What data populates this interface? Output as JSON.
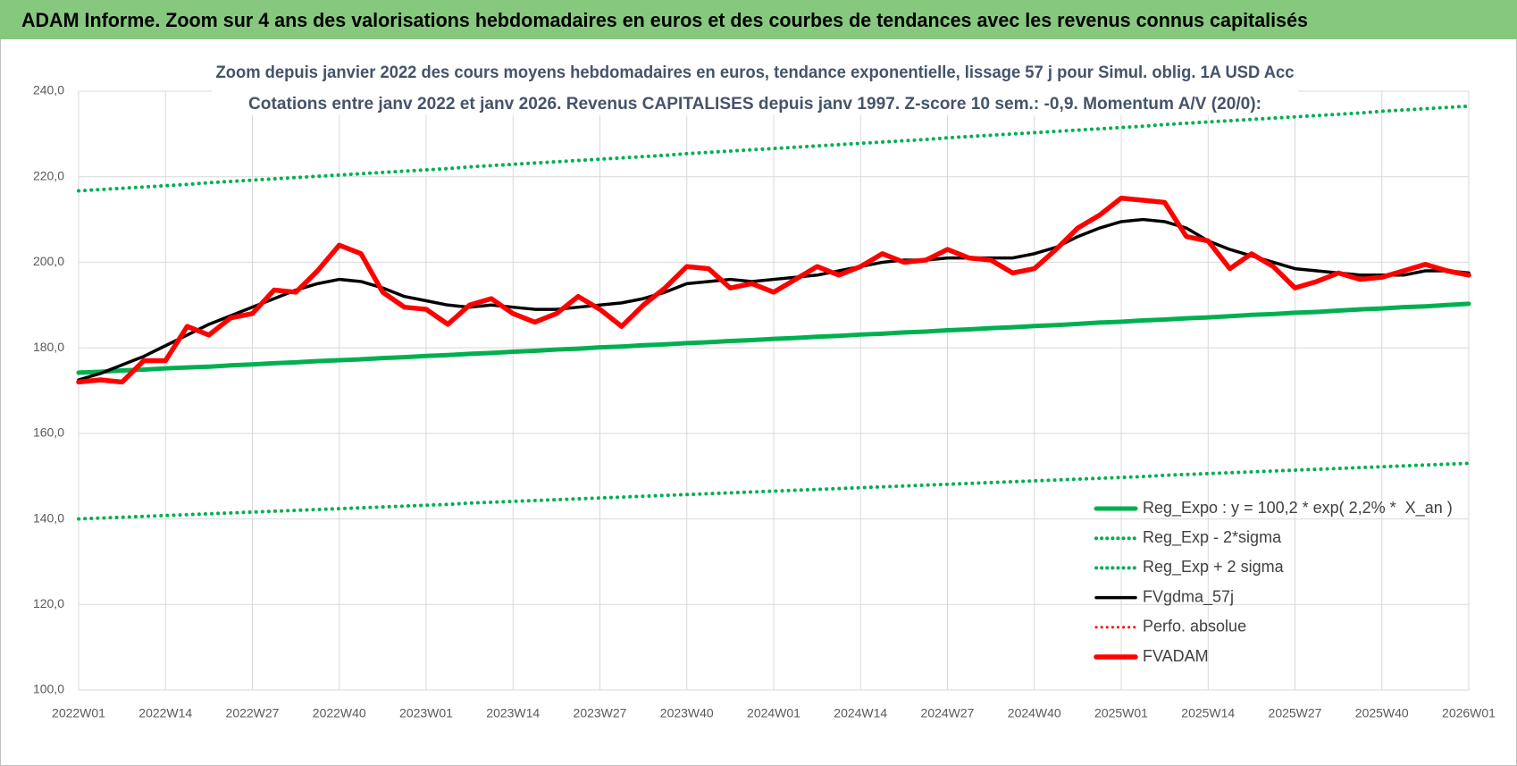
{
  "chart_data": {
    "type": "line",
    "title": "ADAM Informe. Zoom sur 4 ans des valorisations hebdomadaires en euros et des courbes de tendances avec les revenus connus capitalisés",
    "subtitle": [
      "Zoom depuis janvier 2022 des cours moyens hebdomadaires en euros, tendance exponentielle, lissage 57 j pour Simul. oblig. 1A USD Acc",
      "Cotations entre janv 2022 et janv 2026. Revenus CAPITALISES depuis janv 1997. Z-score 10 sem.: -0,9. Momentum A/V (20/0):"
    ],
    "categories": [
      "2022W01",
      null,
      null,
      null,
      "2022W14",
      null,
      null,
      null,
      "2022W27",
      null,
      null,
      null,
      "2022W40",
      null,
      null,
      null,
      "2023W01",
      null,
      null,
      null,
      "2023W14",
      null,
      null,
      null,
      "2023W27",
      null,
      null,
      null,
      "2023W40",
      null,
      null,
      null,
      "2024W01",
      null,
      null,
      null,
      "2024W14",
      null,
      null,
      null,
      "2024W27",
      null,
      null,
      null,
      "2024W40",
      null,
      null,
      null,
      "2025W01",
      null,
      null,
      null,
      "2025W14",
      null,
      null,
      null,
      "2025W27",
      null,
      null,
      null,
      "2025W40",
      null,
      null,
      null,
      "2026W01"
    ],
    "ylim": [
      100,
      240
    ],
    "yticks": [
      {
        "value": 100,
        "label": "100,0"
      },
      {
        "value": 120,
        "label": "120,0"
      },
      {
        "value": 140,
        "label": "140,0"
      },
      {
        "value": 160,
        "label": "160,0"
      },
      {
        "value": 180,
        "label": "180,0"
      },
      {
        "value": 200,
        "label": "200,0"
      },
      {
        "value": 220,
        "label": "220,0"
      },
      {
        "value": 240,
        "label": "240,0"
      }
    ],
    "grid": true,
    "legend": "bottom-right",
    "series": [
      {
        "name": "Reg_Expo : y = 100,2 * exp( 2,2% *  X_an )",
        "color": "#00b050",
        "line_style": "solid",
        "values": [
          174.2,
          174.4,
          174.7,
          174.9,
          175.2,
          175.4,
          175.6,
          175.9,
          176.1,
          176.4,
          176.6,
          176.9,
          177.1,
          177.3,
          177.6,
          177.8,
          178.1,
          178.3,
          178.6,
          178.8,
          179.1,
          179.3,
          179.6,
          179.8,
          180.1,
          180.3,
          180.6,
          180.8,
          181.1,
          181.3,
          181.6,
          181.8,
          182.1,
          182.3,
          182.6,
          182.8,
          183.1,
          183.3,
          183.6,
          183.8,
          184.1,
          184.3,
          184.6,
          184.8,
          185.1,
          185.3,
          185.6,
          185.9,
          186.1,
          186.4,
          186.6,
          186.9,
          187.1,
          187.4,
          187.7,
          187.9,
          188.2,
          188.4,
          188.7,
          189.0,
          189.2,
          189.5,
          189.7,
          190.0,
          190.3
        ]
      },
      {
        "name": "Reg_Exp - 2*sigma",
        "color": "#00b050",
        "line_style": "dotted",
        "values": [
          140.0,
          140.2,
          140.4,
          140.6,
          140.8,
          141.0,
          141.2,
          141.4,
          141.6,
          141.8,
          142.0,
          142.2,
          142.4,
          142.6,
          142.8,
          143.0,
          143.2,
          143.4,
          143.7,
          143.9,
          144.1,
          144.3,
          144.5,
          144.7,
          144.9,
          145.1,
          145.3,
          145.5,
          145.7,
          145.9,
          146.1,
          146.3,
          146.5,
          146.7,
          146.9,
          147.1,
          147.3,
          147.5,
          147.7,
          147.9,
          148.1,
          148.3,
          148.5,
          148.7,
          148.9,
          149.1,
          149.3,
          149.5,
          149.7,
          149.9,
          150.2,
          150.4,
          150.6,
          150.8,
          151.0,
          151.2,
          151.4,
          151.6,
          151.8,
          152.0,
          152.2,
          152.4,
          152.6,
          152.8,
          153.0
        ]
      },
      {
        "name": "Reg_Exp + 2 sigma",
        "color": "#00b050",
        "line_style": "dotted",
        "values": [
          216.7,
          217.0,
          217.3,
          217.6,
          217.9,
          218.2,
          218.6,
          218.9,
          219.2,
          219.5,
          219.8,
          220.1,
          220.4,
          220.7,
          221.0,
          221.3,
          221.6,
          221.9,
          222.3,
          222.6,
          222.9,
          223.2,
          223.5,
          223.8,
          224.1,
          224.4,
          224.7,
          225.0,
          225.4,
          225.7,
          226.0,
          226.3,
          226.6,
          226.9,
          227.2,
          227.5,
          227.8,
          228.1,
          228.4,
          228.7,
          229.1,
          229.4,
          229.7,
          230.0,
          230.3,
          230.6,
          230.9,
          231.2,
          231.5,
          231.8,
          232.2,
          232.5,
          232.8,
          233.1,
          233.4,
          233.7,
          234.0,
          234.3,
          234.6,
          234.9,
          235.3,
          235.6,
          235.9,
          236.2,
          236.5
        ]
      },
      {
        "name": "FVgdma_57j",
        "color": "#000000",
        "line_style": "solid",
        "values": [
          172.5,
          174,
          176,
          178,
          180.5,
          183,
          185.5,
          187.5,
          189.5,
          191.5,
          193.5,
          195,
          196,
          195.5,
          194,
          192,
          191,
          190,
          189.5,
          190,
          189.5,
          189,
          189,
          189.5,
          190,
          190.5,
          191.5,
          193,
          195,
          195.5,
          196,
          195.5,
          196,
          196.5,
          197,
          198,
          199,
          200,
          200.5,
          200.5,
          201,
          201,
          201,
          201,
          202,
          203.5,
          206,
          208,
          209.5,
          210,
          209.5,
          208,
          205,
          203,
          201.5,
          200,
          198.5,
          198,
          197.5,
          197,
          197,
          197,
          198,
          198,
          197.5
        ]
      },
      {
        "name": "Perfo. absolue",
        "color": "#ff0000",
        "line_style": "dotted",
        "values": [
          null,
          null,
          null,
          null,
          null,
          null,
          null,
          null,
          null,
          null,
          null,
          null,
          null,
          null,
          null,
          null,
          null,
          null,
          null,
          null,
          null,
          null,
          null,
          null,
          null,
          null,
          null,
          null,
          null,
          null,
          null,
          null,
          null,
          null,
          null,
          null,
          null,
          null,
          null,
          null,
          null,
          null,
          null,
          null,
          null,
          null,
          null,
          null,
          null,
          null,
          null,
          null,
          null,
          null,
          null,
          null,
          null,
          null,
          null,
          null,
          null,
          null,
          null,
          null,
          null
        ]
      },
      {
        "name": "FVADAM",
        "color": "#ff0000",
        "line_style": "solid",
        "values": [
          172,
          172.5,
          172,
          177,
          177,
          185,
          183,
          187,
          188,
          193.5,
          193,
          198,
          204,
          202,
          193,
          189.5,
          189,
          185.5,
          190,
          191.5,
          188,
          186,
          188,
          192,
          189,
          185,
          190,
          194,
          199,
          198.5,
          194,
          195,
          193,
          196,
          199,
          197,
          199,
          202,
          200,
          200.5,
          203,
          201,
          200.5,
          197.5,
          198.5,
          203,
          208,
          211,
          215,
          214.5,
          214,
          206,
          205,
          198.5,
          202,
          199,
          194,
          195.5,
          197.5,
          196,
          196.5,
          198,
          199.5,
          198,
          197
        ]
      }
    ]
  }
}
